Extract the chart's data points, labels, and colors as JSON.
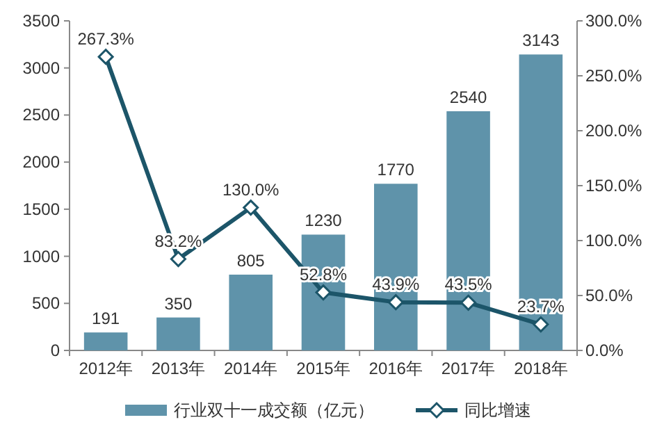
{
  "chart_data": {
    "type": "bar",
    "categories": [
      "2012年",
      "2013年",
      "2014年",
      "2015年",
      "2016年",
      "2017年",
      "2018年"
    ],
    "series": [
      {
        "name": "行业双十一成交额（亿元）",
        "color": "#5f93aa",
        "values": [
          191,
          350,
          805,
          1230,
          1770,
          2540,
          3143
        ],
        "value_labels": [
          "191",
          "350",
          "805",
          "1230",
          "1770",
          "2540",
          "3143"
        ]
      },
      {
        "name": "同比增速",
        "type": "line",
        "axis": "y2",
        "color": "#1c5569",
        "marker": "diamond",
        "values": [
          267.3,
          83.2,
          130.0,
          52.8,
          43.9,
          43.5,
          23.7
        ],
        "value_labels": [
          "267.3%",
          "83.2%",
          "130.0%",
          "52.8%",
          "43.9%",
          "43.5%",
          "23.7%"
        ]
      }
    ],
    "ylim": [
      0,
      3500
    ],
    "yticks": [
      0,
      500,
      1000,
      1500,
      2000,
      2500,
      3000,
      3500
    ],
    "y2lim": [
      0,
      300
    ],
    "y2ticks": [
      {
        "value": 0,
        "label": "0.0%"
      },
      {
        "value": 50,
        "label": "50.0%"
      },
      {
        "value": 100,
        "label": "100.0%"
      },
      {
        "value": 150,
        "label": "150.0%"
      },
      {
        "value": 200,
        "label": "200.0%"
      },
      {
        "value": 250,
        "label": "250.0%"
      },
      {
        "value": 300,
        "label": "300.0%"
      }
    ],
    "legend": "bottom"
  }
}
